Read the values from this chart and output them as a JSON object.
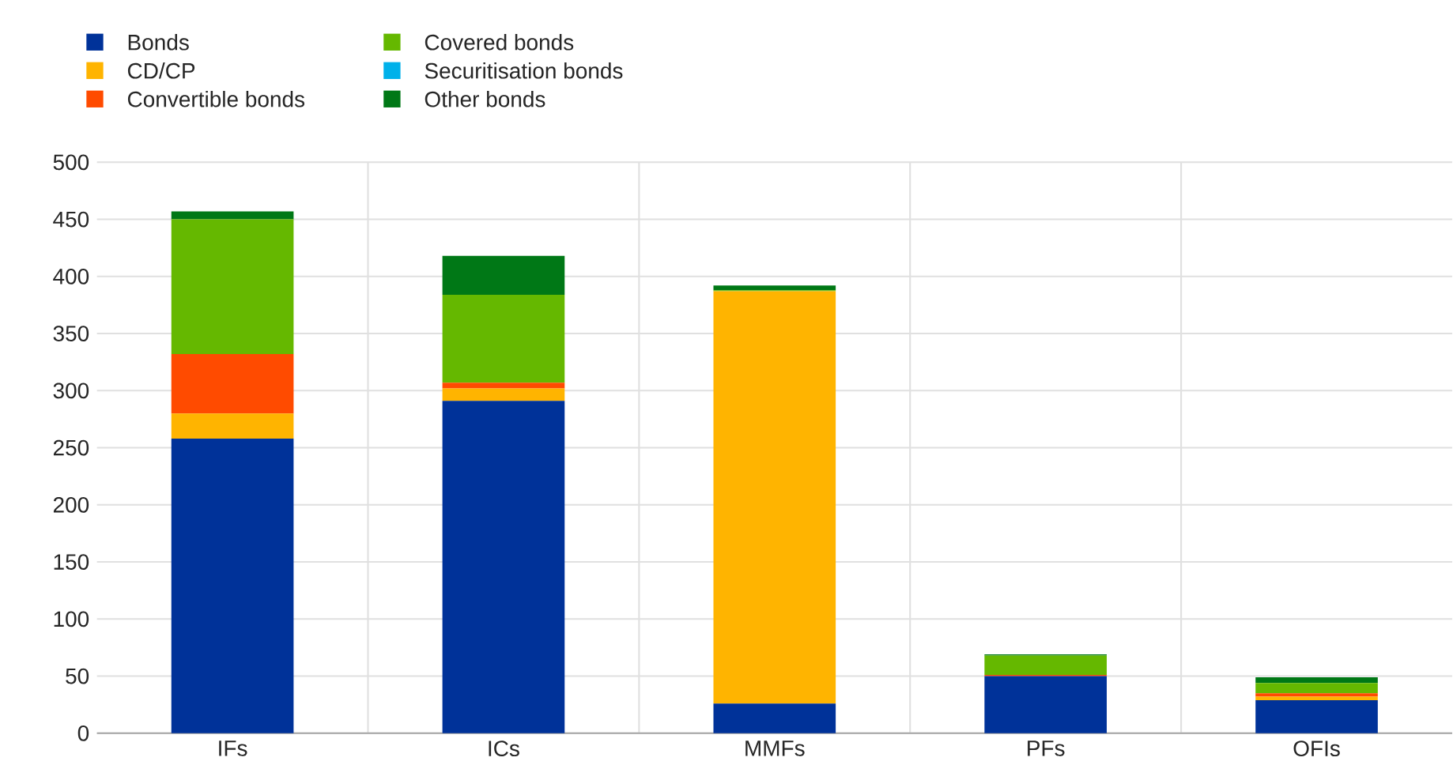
{
  "chart_data": {
    "type": "bar",
    "stacked": true,
    "categories": [
      "IFs",
      "ICs",
      "MMFs",
      "PFs",
      "OFIs"
    ],
    "series": [
      {
        "name": "Bonds",
        "color": "#003299",
        "values": [
          258,
          291,
          26,
          50,
          29
        ]
      },
      {
        "name": "CD/CP",
        "color": "#ffb400",
        "values": [
          22,
          11,
          361,
          0,
          3
        ]
      },
      {
        "name": "Convertible bonds",
        "color": "#ff4b00",
        "values": [
          52,
          5,
          0,
          1,
          3
        ]
      },
      {
        "name": "Covered bonds",
        "color": "#65b800",
        "values": [
          118,
          77,
          1,
          17,
          9
        ]
      },
      {
        "name": "Securitisation bonds",
        "color": "#00b1ea",
        "values": [
          0,
          0,
          0,
          0,
          0
        ]
      },
      {
        "name": "Other bonds",
        "color": "#007816",
        "values": [
          7,
          34,
          4,
          1,
          5
        ]
      }
    ],
    "ylim": [
      0,
      500
    ],
    "yticks": [
      0,
      50,
      100,
      150,
      200,
      250,
      300,
      350,
      400,
      450,
      500
    ],
    "grid": true,
    "legend": "top left"
  }
}
